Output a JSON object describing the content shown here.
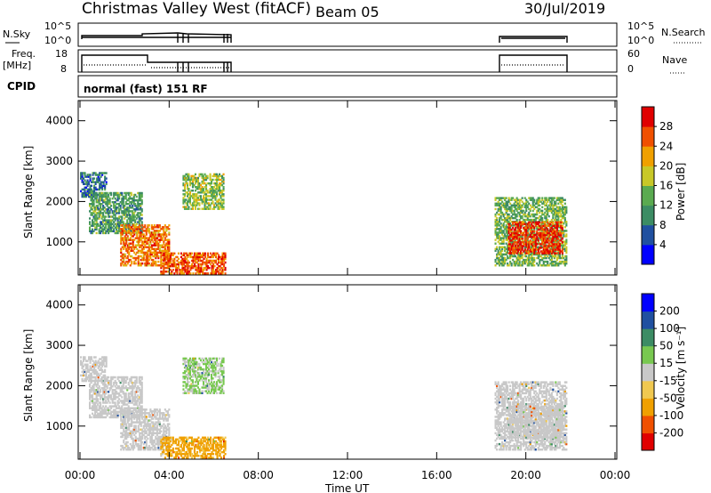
{
  "header": {
    "title": "Christmas Valley West (fitACF)",
    "beam": "Beam 05",
    "date": "30/Jul/2019"
  },
  "params_panel": {
    "nsky_label": "N.Sky",
    "nsky_ticks": [
      "10^5",
      "10^0"
    ],
    "nsky_right_ticks": [
      "10^5",
      "10^0"
    ],
    "nsearch_label": "N.Search",
    "freq_label": "Freq.",
    "freq_unit": "[MHz]",
    "freq_ticks": [
      "18",
      "8"
    ],
    "nave_ticks": [
      "60",
      "0"
    ],
    "nave_label": "Nave",
    "cpid_label": "CPID",
    "cpid_text": "normal (fast) 151 RF"
  },
  "chart_data": [
    {
      "type": "heatmap",
      "name": "power",
      "ylabel": "Slant Range [km]",
      "yticks": [
        "4000",
        "3000",
        "2000",
        "1000"
      ],
      "ylim": [
        180,
        4500
      ],
      "xlim": [
        0,
        24
      ],
      "colorbar": {
        "label": "Power [dB]",
        "ticks": [
          "28",
          "24",
          "20",
          "16",
          "12",
          "8",
          "4"
        ],
        "colors": [
          "#0000ff",
          "#2050a0",
          "#3c8c64",
          "#5aaa50",
          "#c8c828",
          "#f0a000",
          "#f05000",
          "#e00000"
        ]
      },
      "echo_regions": [
        {
          "t": [
            0.0,
            1.2
          ],
          "r": [
            2100,
            2700
          ],
          "level": 8
        },
        {
          "t": [
            0.4,
            2.8
          ],
          "r": [
            1200,
            2200
          ],
          "level": 12
        },
        {
          "t": [
            1.8,
            4.0
          ],
          "r": [
            400,
            1400
          ],
          "level": 24
        },
        {
          "t": [
            3.6,
            6.5
          ],
          "r": [
            200,
            700
          ],
          "level": 26
        },
        {
          "t": [
            4.6,
            6.4
          ],
          "r": [
            1800,
            2700
          ],
          "level": 16
        },
        {
          "t": [
            18.6,
            21.8
          ],
          "r": [
            400,
            2100
          ],
          "level": 14
        },
        {
          "t": [
            19.2,
            21.6
          ],
          "r": [
            700,
            1500
          ],
          "level": 28
        }
      ]
    },
    {
      "type": "heatmap",
      "name": "velocity",
      "xlabel": "Time UT",
      "ylabel": "Slant Range [km]",
      "xticks": [
        "00:00",
        "04:00",
        "08:00",
        "12:00",
        "16:00",
        "20:00",
        "00:00"
      ],
      "yticks": [
        "4000",
        "3000",
        "2000",
        "1000"
      ],
      "ylim": [
        180,
        4500
      ],
      "xlim": [
        0,
        24
      ],
      "colorbar": {
        "label": "Velocity [m s⁻¹]",
        "ticks": [
          "200",
          "100",
          "50",
          "15",
          "-15",
          "-50",
          "-100",
          "-200"
        ],
        "colors": [
          "#e00000",
          "#f05000",
          "#f0a000",
          "#f0c850",
          "#c8c8c8",
          "#78c850",
          "#3c8c64",
          "#2050a0",
          "#0000ff"
        ]
      },
      "echo_regions": [
        {
          "t": [
            0.0,
            1.2
          ],
          "r": [
            2100,
            2700
          ],
          "level": 0
        },
        {
          "t": [
            0.4,
            2.8
          ],
          "r": [
            1200,
            2200
          ],
          "level": 0
        },
        {
          "t": [
            1.8,
            4.0
          ],
          "r": [
            400,
            1400
          ],
          "level": 0
        },
        {
          "t": [
            3.6,
            6.5
          ],
          "r": [
            200,
            700
          ],
          "level": -60
        },
        {
          "t": [
            4.6,
            6.4
          ],
          "r": [
            1800,
            2700
          ],
          "level": 20
        },
        {
          "t": [
            18.6,
            21.8
          ],
          "r": [
            400,
            2100
          ],
          "level": 0
        },
        {
          "t": [
            19.2,
            21.6
          ],
          "r": [
            700,
            1500
          ],
          "level": 0
        }
      ]
    }
  ]
}
